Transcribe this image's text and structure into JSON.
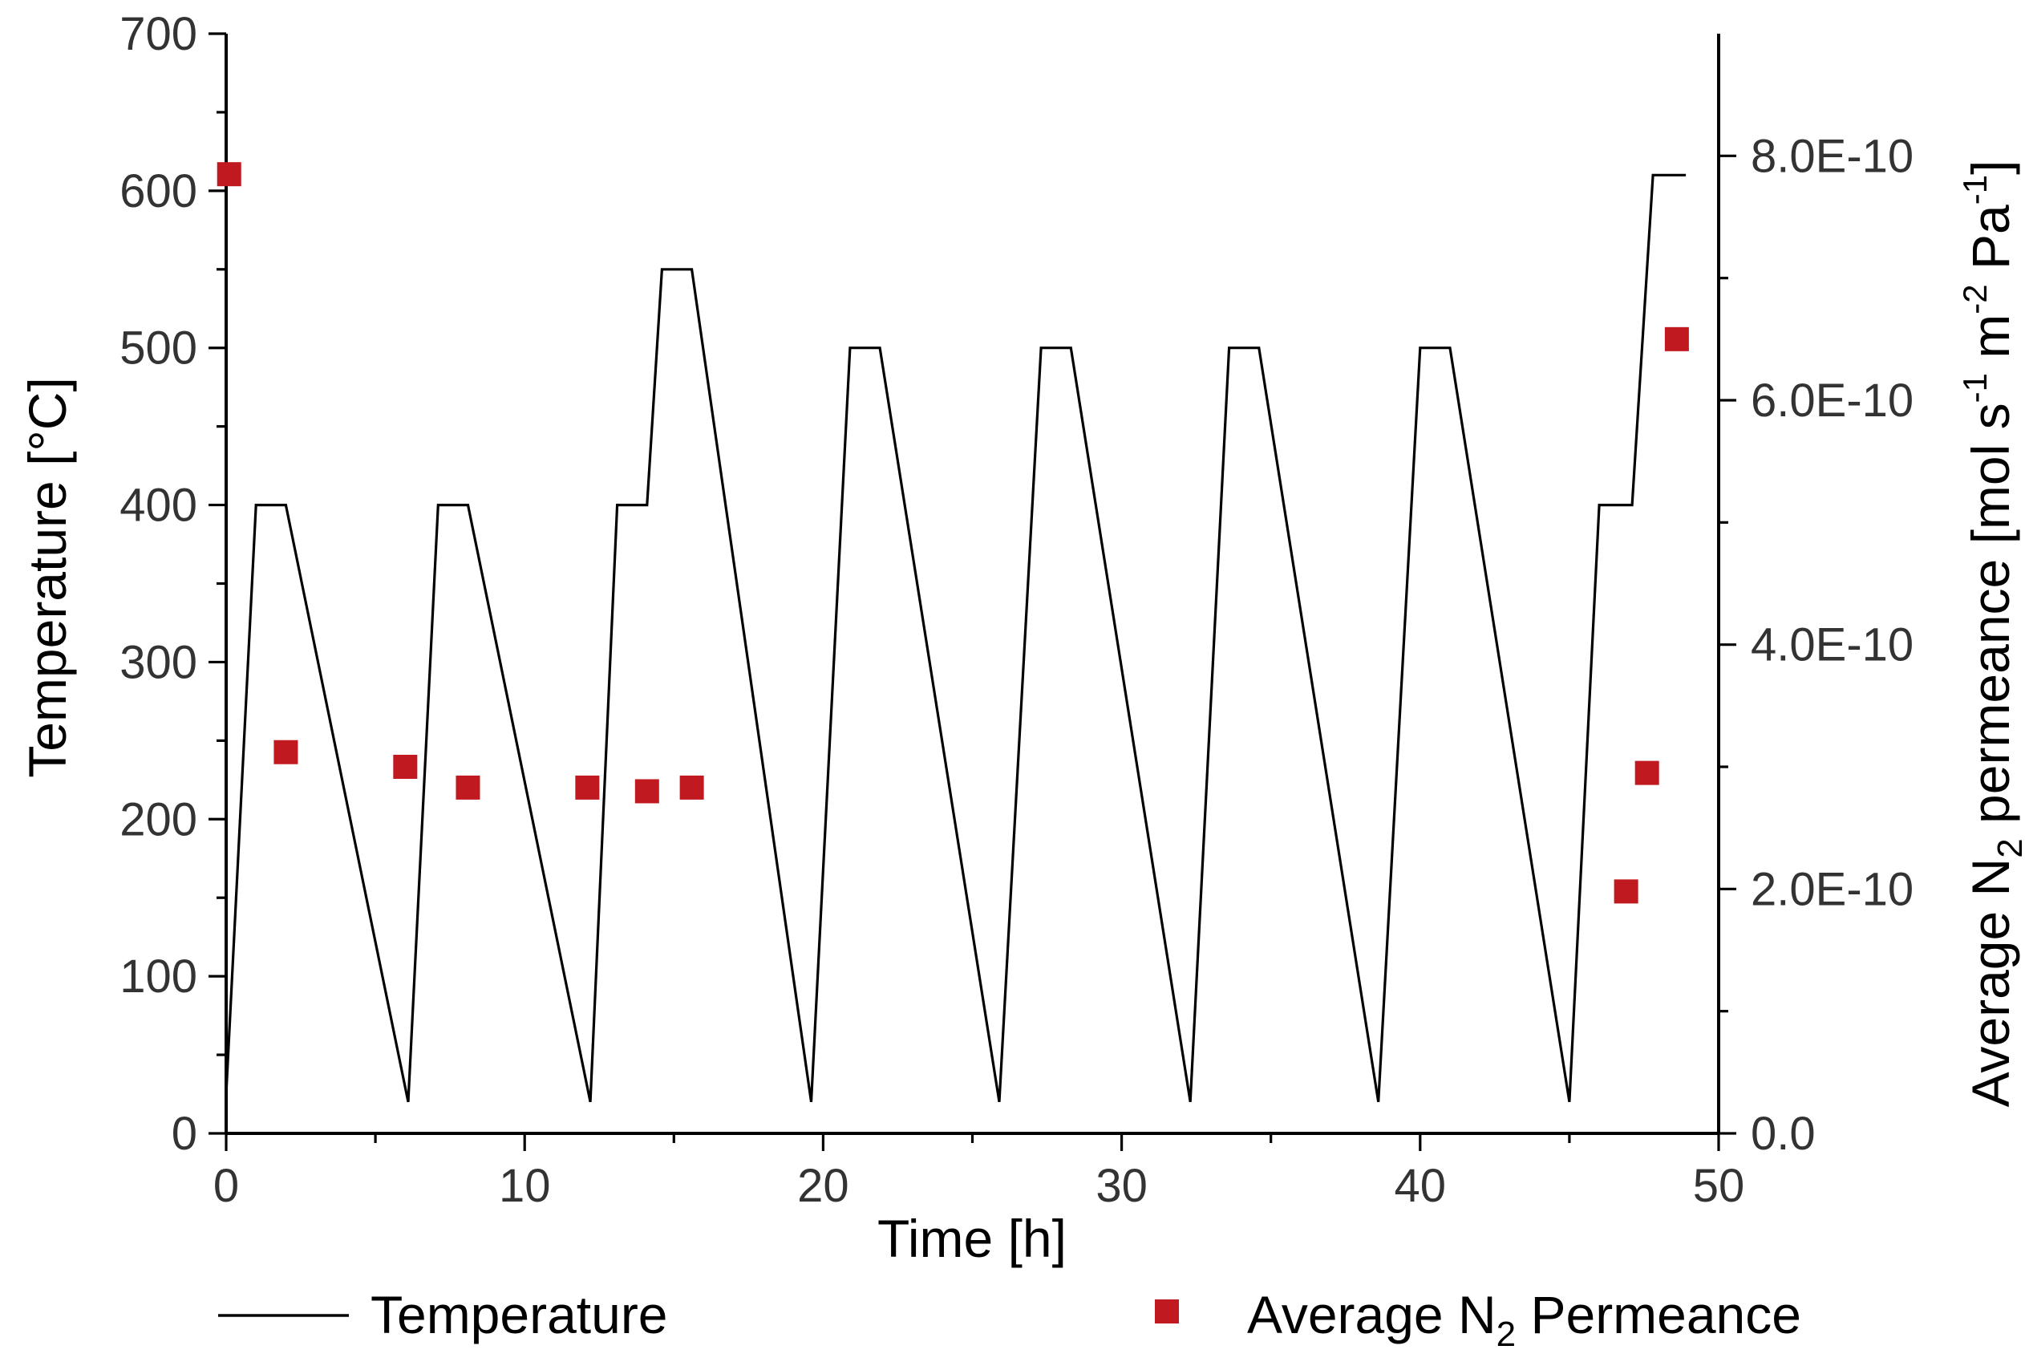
{
  "chart_data": {
    "type": "line+scatter",
    "xlabel": "Time [h]",
    "xlim": [
      0,
      50
    ],
    "x_ticks": [
      0,
      10,
      20,
      30,
      40,
      50
    ],
    "x_tick_labels": [
      "0",
      "10",
      "20",
      "30",
      "40",
      "50"
    ],
    "ylabel_left": "Temperature [°C]",
    "ylim_left": [
      0,
      700
    ],
    "y_left_ticks": [
      0,
      100,
      200,
      300,
      400,
      500,
      600,
      700
    ],
    "y_left_tick_labels": [
      "0",
      "100",
      "200",
      "300",
      "400",
      "500",
      "600",
      "700"
    ],
    "ylabel_right": {
      "base": "Average N",
      "sub_n": "2",
      "mid": " permeance [mol s",
      "sup1": "-1",
      "m": " m",
      "sup2": "-2",
      "pa": " Pa",
      "sup3": "-1",
      "end": "]"
    },
    "ylim_right": [
      0,
      9e-10
    ],
    "y_right_ticks": [
      0,
      2e-10,
      4e-10,
      6e-10,
      8e-10
    ],
    "y_right_tick_labels": [
      "0.0",
      "2.0E-10",
      "4.0E-10",
      "6.0E-10",
      "8.0E-10"
    ],
    "series": [
      {
        "name": "Temperature",
        "kind": "line",
        "axis": "left",
        "color": "#000000",
        "points": [
          [
            0,
            25
          ],
          [
            1.0,
            400
          ],
          [
            2.0,
            400
          ],
          [
            6.1,
            20
          ],
          [
            7.1,
            400
          ],
          [
            8.1,
            400
          ],
          [
            12.2,
            20
          ],
          [
            13.1,
            400
          ],
          [
            14.1,
            400
          ],
          [
            14.6,
            550
          ],
          [
            15.6,
            550
          ],
          [
            19.6,
            20
          ],
          [
            20.9,
            500
          ],
          [
            21.9,
            500
          ],
          [
            25.9,
            20
          ],
          [
            27.3,
            500
          ],
          [
            28.3,
            500
          ],
          [
            32.3,
            20
          ],
          [
            33.6,
            500
          ],
          [
            34.6,
            500
          ],
          [
            38.6,
            20
          ],
          [
            40.0,
            500
          ],
          [
            41.0,
            500
          ],
          [
            45.0,
            20
          ],
          [
            46.0,
            400
          ],
          [
            47.1,
            400
          ],
          [
            47.8,
            610
          ],
          [
            48.9,
            610
          ]
        ]
      },
      {
        "name": "Average N2 Permeance",
        "legend_base": "Average N",
        "legend_sub": "2",
        "legend_end": " Permeance",
        "kind": "scatter",
        "axis": "right",
        "color": "#c0191f",
        "points": [
          [
            0.1,
            7.85e-10
          ],
          [
            2.0,
            3.12e-10
          ],
          [
            6.0,
            3e-10
          ],
          [
            8.1,
            2.83e-10
          ],
          [
            12.1,
            2.83e-10
          ],
          [
            14.1,
            2.8e-10
          ],
          [
            15.6,
            2.83e-10
          ],
          [
            46.9,
            1.98e-10
          ],
          [
            47.6,
            2.95e-10
          ],
          [
            48.6,
            6.5e-10
          ]
        ]
      }
    ]
  }
}
